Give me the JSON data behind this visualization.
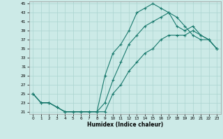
{
  "xlabel": "Humidex (Indice chaleur)",
  "bg_color": "#cceae7",
  "grid_color": "#aad4d0",
  "line_color": "#1a7a6e",
  "xlim": [
    -0.5,
    23.5
  ],
  "ylim": [
    20.5,
    45.5
  ],
  "yticks": [
    21,
    23,
    25,
    27,
    29,
    31,
    33,
    35,
    37,
    39,
    41,
    43,
    45
  ],
  "xticks": [
    0,
    1,
    2,
    3,
    4,
    5,
    6,
    7,
    8,
    9,
    10,
    11,
    12,
    13,
    14,
    15,
    16,
    17,
    18,
    19,
    20,
    21,
    22,
    23
  ],
  "curve1_x": [
    0,
    1,
    2,
    3,
    4,
    5,
    6,
    7,
    8,
    9,
    10,
    11,
    12,
    13,
    14,
    15,
    16,
    17,
    18,
    19,
    20,
    21,
    22,
    23
  ],
  "curve1_y": [
    25,
    23,
    23,
    22,
    21,
    21,
    21,
    21,
    21,
    29,
    34,
    36,
    39,
    43,
    44,
    45,
    44,
    43,
    42,
    40,
    38,
    37,
    37,
    35
  ],
  "curve2_x": [
    0,
    1,
    2,
    3,
    4,
    5,
    6,
    7,
    8,
    9,
    10,
    11,
    12,
    13,
    14,
    15,
    16,
    17,
    18,
    19,
    20,
    21,
    22,
    23
  ],
  "curve2_y": [
    25,
    23,
    23,
    22,
    21,
    21,
    21,
    21,
    21,
    23,
    28,
    32,
    36,
    38,
    40,
    41,
    42,
    43,
    40,
    39,
    40,
    38,
    37,
    35
  ],
  "curve3_x": [
    0,
    1,
    2,
    3,
    4,
    5,
    6,
    7,
    8,
    9,
    10,
    11,
    12,
    13,
    14,
    15,
    16,
    17,
    18,
    19,
    20,
    21,
    22,
    23
  ],
  "curve3_y": [
    25,
    23,
    23,
    22,
    21,
    21,
    21,
    21,
    21,
    21,
    25,
    27,
    30,
    32,
    34,
    35,
    37,
    38,
    38,
    38,
    39,
    38,
    37,
    35
  ]
}
